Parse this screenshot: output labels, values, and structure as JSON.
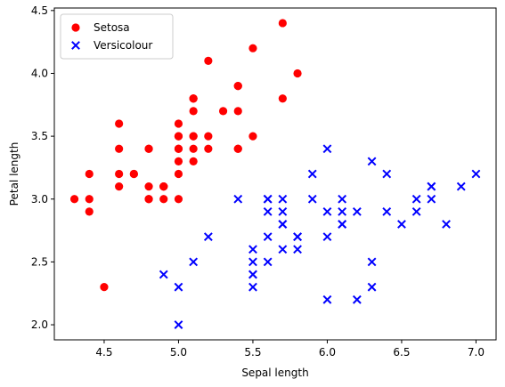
{
  "chart_data": {
    "type": "scatter",
    "title": "",
    "xlabel": "Sepal length",
    "ylabel": "Petal length",
    "xlim": [
      4.165,
      7.135
    ],
    "ylim": [
      1.88,
      4.52
    ],
    "xticks": [
      "4.5",
      "5.0",
      "5.5",
      "6.0",
      "6.5",
      "7.0"
    ],
    "yticks": [
      "2.0",
      "2.5",
      "3.0",
      "3.5",
      "4.0",
      "4.5"
    ],
    "grid": false,
    "legend_position": "top-left",
    "series": [
      {
        "name": "Setosa",
        "marker": "circle",
        "color": "#ff0000",
        "points": [
          [
            5.1,
            3.5
          ],
          [
            4.9,
            3.0
          ],
          [
            4.7,
            3.2
          ],
          [
            4.6,
            3.1
          ],
          [
            5.0,
            3.6
          ],
          [
            5.4,
            3.9
          ],
          [
            4.6,
            3.4
          ],
          [
            5.0,
            3.4
          ],
          [
            4.4,
            2.9
          ],
          [
            4.9,
            3.1
          ],
          [
            5.4,
            3.7
          ],
          [
            4.8,
            3.4
          ],
          [
            4.8,
            3.0
          ],
          [
            4.3,
            3.0
          ],
          [
            5.8,
            4.0
          ],
          [
            5.7,
            4.4
          ],
          [
            5.4,
            3.9
          ],
          [
            5.1,
            3.5
          ],
          [
            5.7,
            3.8
          ],
          [
            5.1,
            3.8
          ],
          [
            5.4,
            3.4
          ],
          [
            5.1,
            3.7
          ],
          [
            4.6,
            3.6
          ],
          [
            5.1,
            3.3
          ],
          [
            4.8,
            3.4
          ],
          [
            5.0,
            3.0
          ],
          [
            5.0,
            3.4
          ],
          [
            5.2,
            3.5
          ],
          [
            5.2,
            3.4
          ],
          [
            4.7,
            3.2
          ],
          [
            4.8,
            3.1
          ],
          [
            5.4,
            3.4
          ],
          [
            5.2,
            4.1
          ],
          [
            5.5,
            4.2
          ],
          [
            4.9,
            3.1
          ],
          [
            5.0,
            3.2
          ],
          [
            5.5,
            3.5
          ],
          [
            4.9,
            3.1
          ],
          [
            4.4,
            3.0
          ],
          [
            5.1,
            3.4
          ],
          [
            5.0,
            3.5
          ],
          [
            4.5,
            2.3
          ],
          [
            4.4,
            3.2
          ],
          [
            5.0,
            3.5
          ],
          [
            5.1,
            3.8
          ],
          [
            4.8,
            3.0
          ],
          [
            5.1,
            3.8
          ],
          [
            4.6,
            3.2
          ],
          [
            5.3,
            3.7
          ],
          [
            5.0,
            3.3
          ]
        ]
      },
      {
        "name": "Versicolour",
        "marker": "x",
        "color": "#0000ff",
        "points": [
          [
            7.0,
            3.2
          ],
          [
            6.4,
            3.2
          ],
          [
            6.9,
            3.1
          ],
          [
            5.5,
            2.3
          ],
          [
            6.5,
            2.8
          ],
          [
            5.7,
            2.8
          ],
          [
            6.3,
            3.3
          ],
          [
            4.9,
            2.4
          ],
          [
            6.6,
            2.9
          ],
          [
            5.2,
            2.7
          ],
          [
            5.0,
            2.0
          ],
          [
            5.9,
            3.0
          ],
          [
            6.0,
            2.2
          ],
          [
            6.1,
            2.9
          ],
          [
            5.6,
            2.9
          ],
          [
            6.7,
            3.1
          ],
          [
            5.6,
            3.0
          ],
          [
            5.8,
            2.7
          ],
          [
            6.2,
            2.2
          ],
          [
            5.6,
            2.5
          ],
          [
            5.9,
            3.2
          ],
          [
            6.1,
            2.8
          ],
          [
            6.3,
            2.5
          ],
          [
            6.1,
            2.8
          ],
          [
            6.4,
            2.9
          ],
          [
            6.6,
            3.0
          ],
          [
            6.8,
            2.8
          ],
          [
            6.7,
            3.0
          ],
          [
            6.0,
            2.9
          ],
          [
            5.7,
            2.6
          ],
          [
            5.5,
            2.4
          ],
          [
            5.5,
            2.4
          ],
          [
            5.8,
            2.7
          ],
          [
            6.0,
            2.7
          ],
          [
            5.4,
            3.0
          ],
          [
            6.0,
            3.4
          ],
          [
            6.7,
            3.1
          ],
          [
            6.3,
            2.3
          ],
          [
            5.6,
            3.0
          ],
          [
            5.5,
            2.5
          ],
          [
            5.5,
            2.6
          ],
          [
            6.1,
            3.0
          ],
          [
            5.8,
            2.6
          ],
          [
            5.0,
            2.3
          ],
          [
            5.6,
            2.7
          ],
          [
            5.7,
            3.0
          ],
          [
            5.7,
            2.9
          ],
          [
            6.2,
            2.9
          ],
          [
            5.1,
            2.5
          ],
          [
            5.7,
            2.8
          ]
        ]
      }
    ]
  }
}
